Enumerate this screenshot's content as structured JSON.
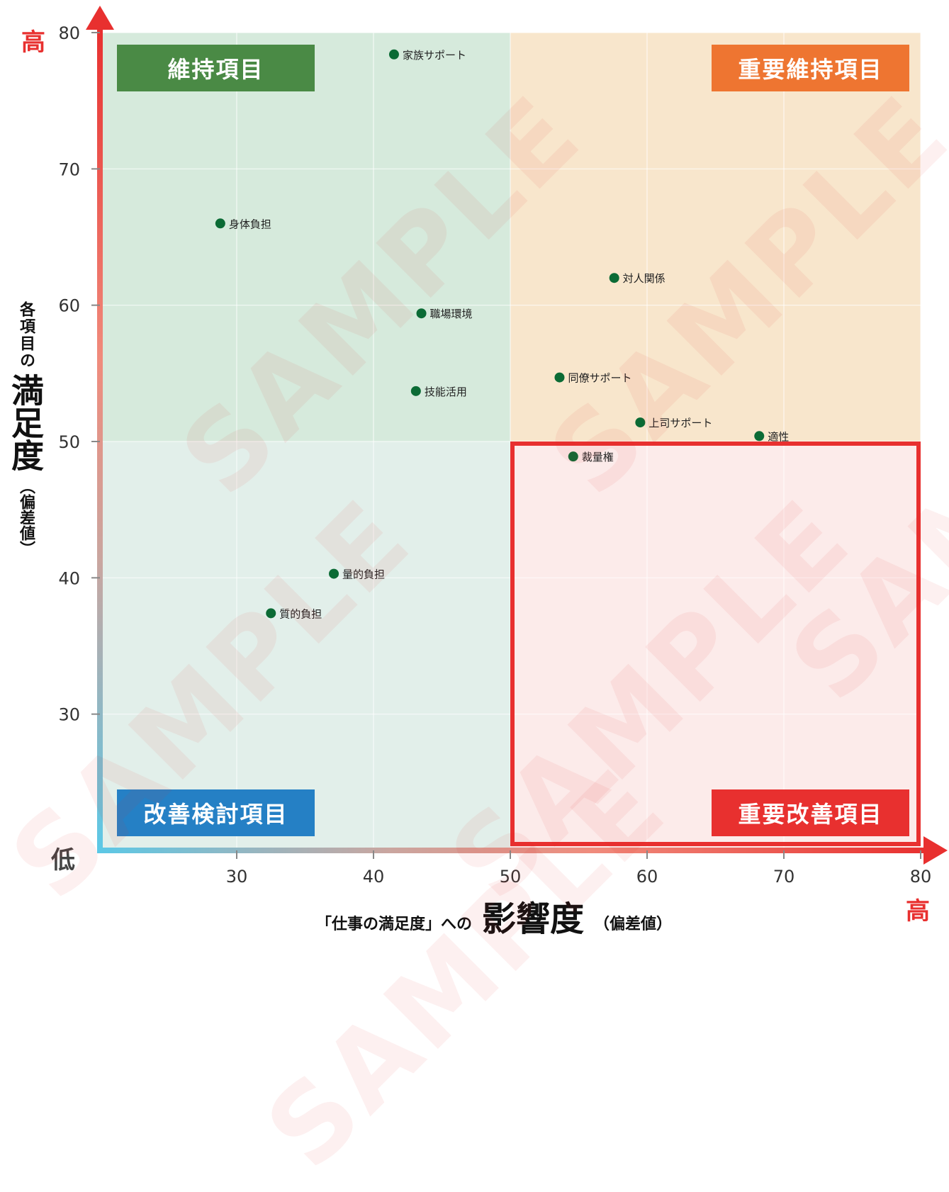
{
  "chart_data": {
    "type": "scatter",
    "xlim": [
      20,
      80
    ],
    "ylim": [
      20,
      80
    ],
    "x_ticks": [
      "30",
      "40",
      "50",
      "60",
      "70",
      "80"
    ],
    "y_ticks": [
      "30",
      "40",
      "50",
      "60",
      "70",
      "80"
    ],
    "divider": {
      "x": 50,
      "y": 50
    },
    "grid": true,
    "points": [
      {
        "label": "家族サポート",
        "x": 41.5,
        "y": 78.4
      },
      {
        "label": "身体負担",
        "x": 28.8,
        "y": 66.0
      },
      {
        "label": "対人関係",
        "x": 57.6,
        "y": 62.0
      },
      {
        "label": "職場環境",
        "x": 43.5,
        "y": 59.4
      },
      {
        "label": "同僚サポート",
        "x": 53.6,
        "y": 54.7
      },
      {
        "label": "技能活用",
        "x": 43.1,
        "y": 53.7
      },
      {
        "label": "上司サポート",
        "x": 59.5,
        "y": 51.4
      },
      {
        "label": "適性",
        "x": 68.2,
        "y": 50.4
      },
      {
        "label": "裁量権",
        "x": 54.6,
        "y": 48.9
      },
      {
        "label": "量的負担",
        "x": 37.1,
        "y": 40.3
      },
      {
        "label": "質的負担",
        "x": 32.5,
        "y": 37.4
      }
    ],
    "quadrants": {
      "top_left": "維持項目",
      "top_right": "重要維持項目",
      "bottom_left": "改善検討項目",
      "bottom_right": "重要改善項目"
    },
    "y_axis": {
      "high": "高",
      "low": "低",
      "title_small": "各項目の",
      "title_big": "満足度",
      "title_note": "（偏差値）"
    },
    "x_axis": {
      "high": "高",
      "title_pre": "「仕事の満足度」への",
      "title_big": "影響度",
      "title_note": "（偏差値）"
    },
    "watermark": "SAMPLE"
  },
  "colors": {
    "quad_top_left_bg": "#d6eadc",
    "quad_top_right_bg": "#f8e6cc",
    "quad_bottom_left_bg": "#e2efea",
    "quad_bottom_right_bg": "#fcebea",
    "label_top_left": "#4a8a45",
    "label_top_right": "#ee7531",
    "label_bottom_left": "#2580c5",
    "label_bottom_right": "#e8302f",
    "highlight_border": "#e8302f",
    "point": "#0b6b35",
    "axis_red": "#e8302f",
    "axis_blue": "#5bc8e6"
  }
}
